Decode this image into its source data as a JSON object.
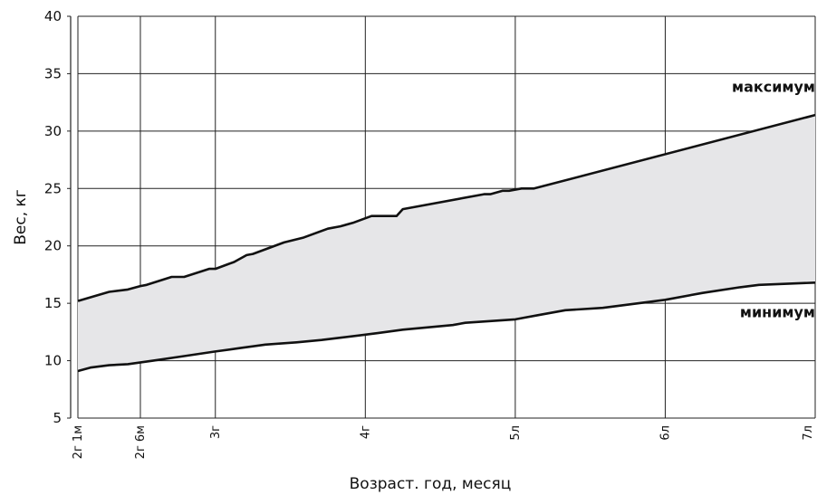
{
  "chart_data": {
    "type": "area",
    "xlabel": "Возраст. год, месяц",
    "ylabel": "Вес, кг",
    "xlim": [
      25,
      84
    ],
    "ylim": [
      5,
      40
    ],
    "y_ticks": [
      5,
      10,
      15,
      20,
      25,
      30,
      35,
      40
    ],
    "x_ticks": [
      {
        "value": 25,
        "label": "2г 1м"
      },
      {
        "value": 30,
        "label": "2г 6м"
      },
      {
        "value": 36,
        "label": "3г"
      },
      {
        "value": 48,
        "label": "4г"
      },
      {
        "value": 60,
        "label": "5л"
      },
      {
        "value": 72,
        "label": "6л"
      },
      {
        "value": 84,
        "label": "7л"
      }
    ],
    "grid": true,
    "series": [
      {
        "name": "максимум",
        "x": [
          25,
          27.5,
          29,
          30,
          30.5,
          32.5,
          33.5,
          35.5,
          36,
          37,
          37.5,
          38.5,
          39,
          41.5,
          43,
          45,
          46,
          47,
          48.5,
          50.5,
          51,
          57.5,
          58,
          59,
          59.5,
          60.5,
          61.5,
          84
        ],
        "y": [
          15.2,
          16.0,
          16.2,
          16.5,
          16.6,
          17.3,
          17.3,
          18.0,
          18.0,
          18.4,
          18.6,
          19.2,
          19.3,
          20.3,
          20.7,
          21.5,
          21.7,
          22.0,
          22.6,
          22.6,
          23.2,
          24.5,
          24.5,
          24.8,
          24.8,
          25.0,
          25.0,
          31.4
        ]
      },
      {
        "name": "минимум",
        "x": [
          25,
          26,
          27.5,
          29,
          31,
          33.5,
          36,
          38,
          40,
          42.5,
          44.5,
          46,
          47.5,
          49,
          51,
          55,
          56,
          60,
          62,
          64,
          67,
          72,
          75,
          78,
          79.5,
          84
        ],
        "y": [
          9.1,
          9.4,
          9.6,
          9.7,
          10.0,
          10.4,
          10.8,
          11.1,
          11.4,
          11.6,
          11.8,
          12.0,
          12.2,
          12.4,
          12.7,
          13.1,
          13.3,
          13.6,
          14.0,
          14.4,
          14.6,
          15.3,
          15.9,
          16.4,
          16.6,
          16.8
        ]
      }
    ]
  }
}
